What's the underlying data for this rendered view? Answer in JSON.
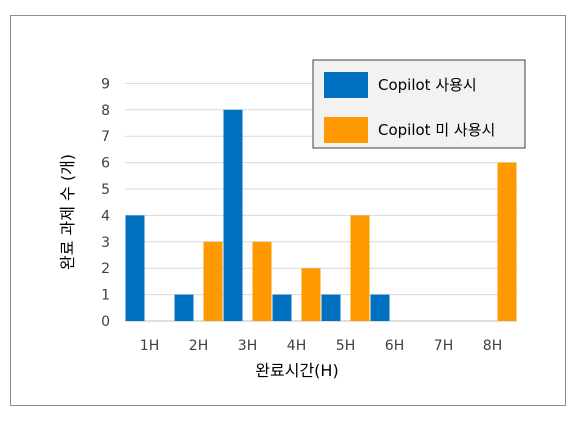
{
  "chart_data": {
    "type": "bar",
    "title": "",
    "xlabel": "완료시간(H)",
    "ylabel": "완료 과제 수 (개)",
    "categories": [
      "1H",
      "2H",
      "3H",
      "4H",
      "5H",
      "6H",
      "7H",
      "8H"
    ],
    "series": [
      {
        "name": "Copilot 사용시",
        "color": "#0070c0",
        "values": [
          4,
          1,
          8,
          1,
          1,
          1,
          0,
          0
        ]
      },
      {
        "name": "Copilot 미 사용시",
        "color": "#ff9900",
        "values": [
          0,
          3,
          3,
          2,
          4,
          0,
          0,
          6
        ]
      }
    ],
    "ylim": [
      0,
      9
    ],
    "yticks": [
      0,
      1,
      2,
      3,
      4,
      5,
      6,
      7,
      8,
      9
    ],
    "grid": true,
    "legend_position": "top-right"
  }
}
